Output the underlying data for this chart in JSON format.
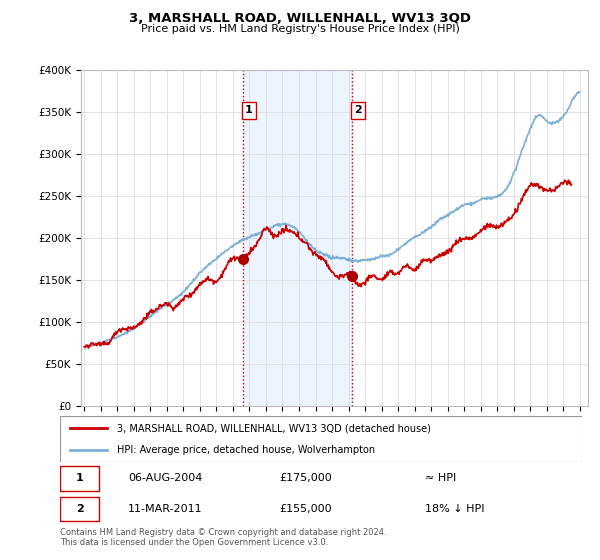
{
  "title": "3, MARSHALL ROAD, WILLENHALL, WV13 3QD",
  "subtitle": "Price paid vs. HM Land Registry's House Price Index (HPI)",
  "ylim": [
    0,
    400000
  ],
  "yticks": [
    0,
    50000,
    100000,
    150000,
    200000,
    250000,
    300000,
    350000,
    400000
  ],
  "ytick_labels": [
    "£0",
    "£50K",
    "£100K",
    "£150K",
    "£200K",
    "£250K",
    "£300K",
    "£350K",
    "£400K"
  ],
  "background_color": "#ffffff",
  "grid_color": "#dddddd",
  "hpi_color": "#7ab0d4",
  "price_color": "#cc0000",
  "sale1_x": 2004.58,
  "sale1_y": 175000,
  "sale2_x": 2011.19,
  "sale2_y": 155000,
  "vline_color": "#cc0000",
  "shade_color": "#ddeeff",
  "legend_entry1": "3, MARSHALL ROAD, WILLENHALL, WV13 3QD (detached house)",
  "legend_entry2": "HPI: Average price, detached house, Wolverhampton",
  "table_row1": [
    "1",
    "06-AUG-2004",
    "£175,000",
    "≈ HPI"
  ],
  "table_row2": [
    "2",
    "11-MAR-2011",
    "£155,000",
    "18% ↓ HPI"
  ],
  "footer": "Contains HM Land Registry data © Crown copyright and database right 2024.\nThis data is licensed under the Open Government Licence v3.0.",
  "xmin": 1994.8,
  "xmax": 2025.5
}
